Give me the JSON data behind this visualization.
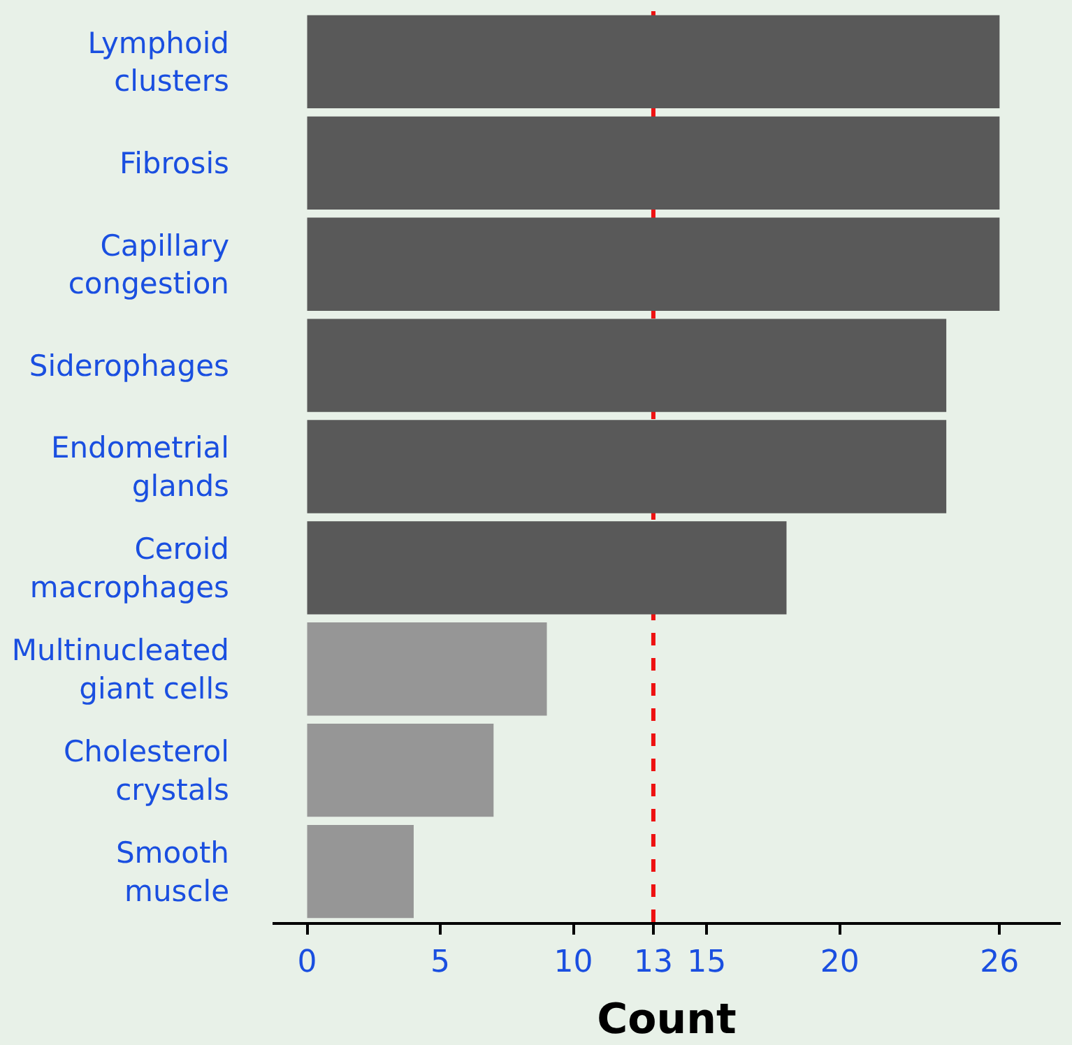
{
  "chart_data": {
    "type": "bar",
    "orientation": "horizontal",
    "xlabel": "Count",
    "categories": [
      "Lymphoid\nclusters",
      "Fibrosis",
      "Capillary\ncongestion",
      "Siderophages",
      "Endometrial\nglands",
      "Ceroid\nmacrophages",
      "Multinucleated\ngiant cells",
      "Cholesterol\ncrystals",
      "Smooth\nmuscle"
    ],
    "values": [
      26,
      26,
      26,
      24,
      24,
      18,
      9,
      7,
      4
    ],
    "colors": [
      "#595959",
      "#595959",
      "#595959",
      "#595959",
      "#595959",
      "#595959",
      "#969696",
      "#969696",
      "#969696"
    ],
    "xlim": [
      -1.3,
      28.3
    ],
    "xticks": [
      0,
      5,
      10,
      13,
      15,
      20,
      26
    ],
    "ref_lines": [
      {
        "axis": "x",
        "value": 13,
        "color": "#ee1111",
        "line_style": "dashed"
      }
    ]
  }
}
